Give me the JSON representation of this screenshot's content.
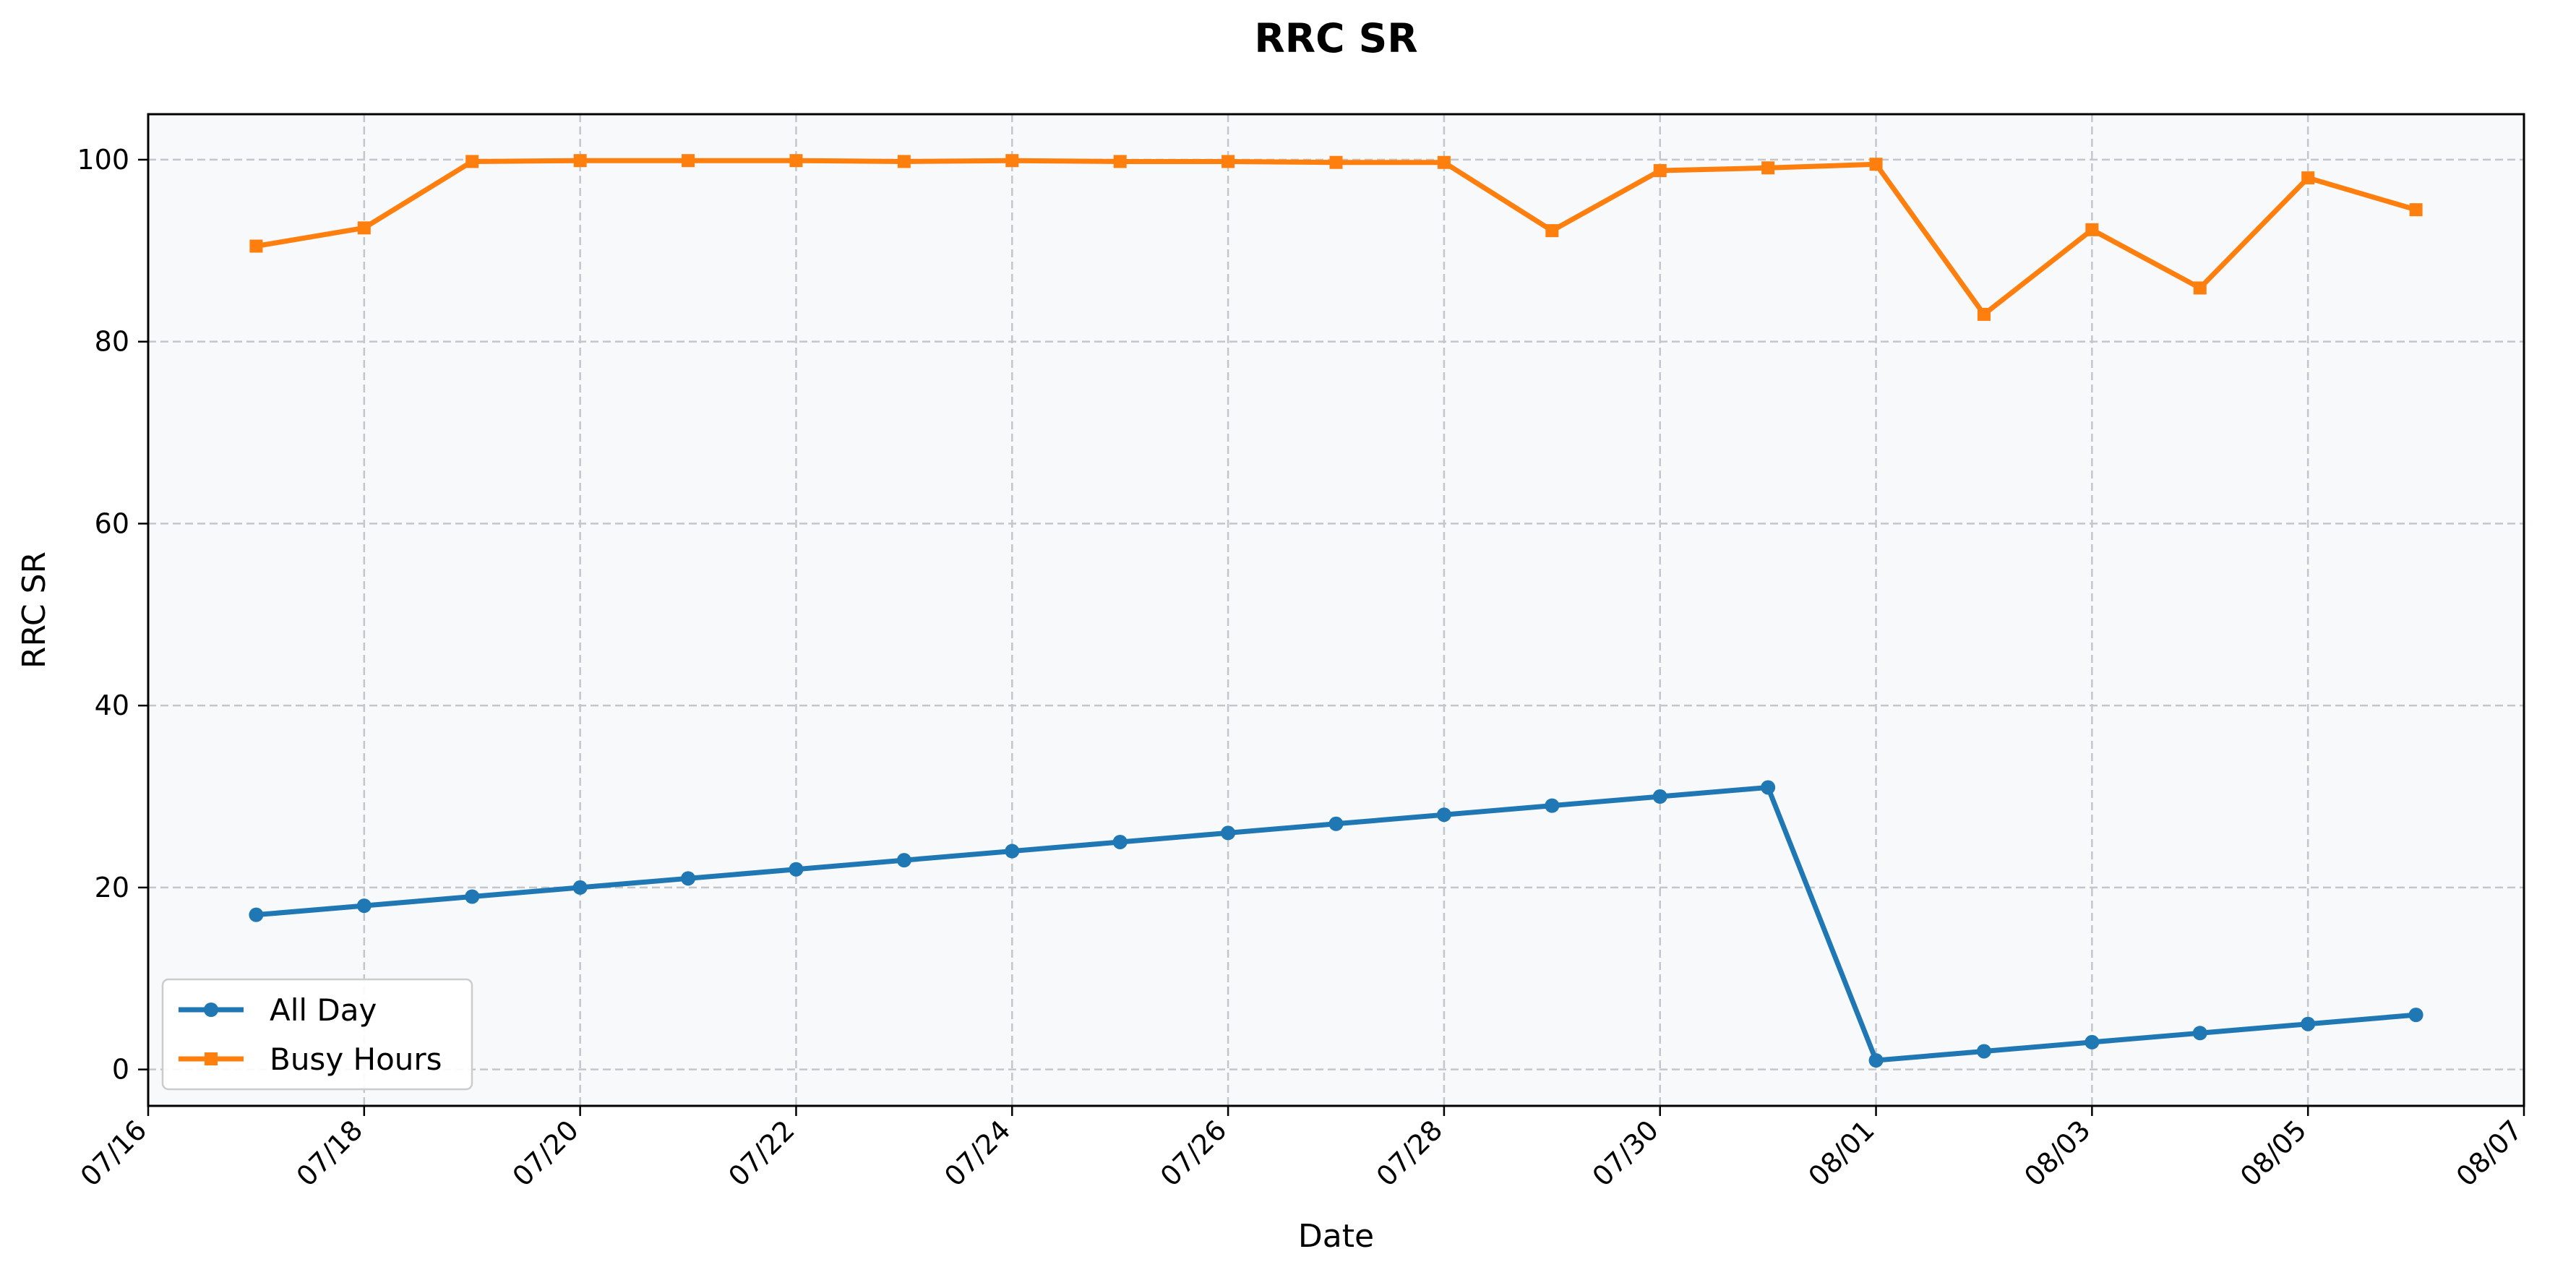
{
  "chart_data": {
    "type": "line",
    "title": "RRC SR",
    "xlabel": "Date",
    "ylabel": "RRC SR",
    "x": [
      "07/17",
      "07/18",
      "07/19",
      "07/20",
      "07/21",
      "07/22",
      "07/23",
      "07/24",
      "07/25",
      "07/26",
      "07/27",
      "07/28",
      "07/29",
      "07/30",
      "07/31",
      "08/01",
      "08/02",
      "08/03",
      "08/04",
      "08/05",
      "08/06"
    ],
    "x_ticks": [
      "07/16",
      "07/18",
      "07/20",
      "07/22",
      "07/24",
      "07/26",
      "07/28",
      "07/30",
      "08/01",
      "08/03",
      "08/05",
      "08/07"
    ],
    "y_ticks": [
      0,
      20,
      40,
      60,
      80,
      100
    ],
    "ylim": [
      -4,
      105
    ],
    "xlim": [
      "07/16",
      "08/07"
    ],
    "grid": true,
    "legend": "lower-left",
    "series": [
      {
        "name": "All Day",
        "color": "#1f77b4",
        "marker": "circle",
        "values": [
          17,
          18,
          19,
          20,
          21,
          22,
          23,
          24,
          25,
          26,
          27,
          28,
          29,
          30,
          31,
          1,
          2,
          3,
          4,
          5,
          6
        ]
      },
      {
        "name": "Busy Hours",
        "color": "#ff7f0e",
        "marker": "square",
        "values": [
          90.5,
          92.5,
          99.8,
          99.9,
          99.9,
          99.9,
          99.8,
          99.9,
          99.8,
          99.8,
          99.7,
          99.7,
          92.2,
          98.8,
          99.1,
          99.5,
          83.0,
          92.3,
          85.9,
          98.0,
          94.5
        ]
      }
    ]
  }
}
